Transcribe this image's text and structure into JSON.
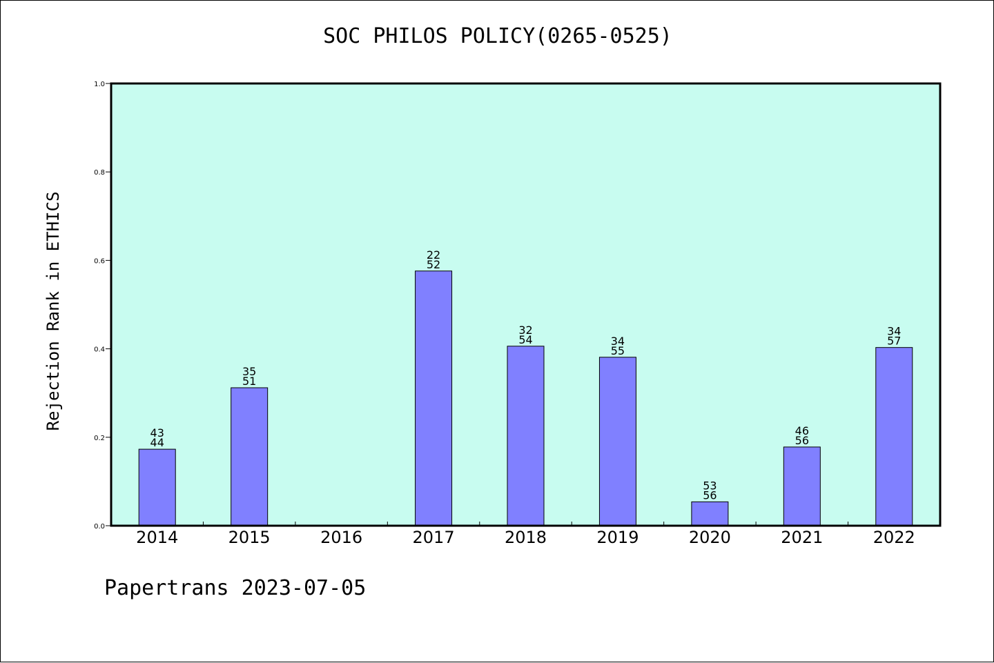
{
  "page": {
    "title": "SOC PHILOS POLICY(0265-0525)",
    "footer": "Papertrans 2023-07-05"
  },
  "chart_data": {
    "type": "bar",
    "title": "SOC PHILOS POLICY(0265-0525)",
    "xlabel": "",
    "ylabel": "Rejection Rank in ETHICS",
    "ylim": [
      0,
      1.0
    ],
    "yticks": [
      0.0,
      0.2,
      0.4,
      0.6,
      0.8,
      1.0
    ],
    "ytick_labels": [
      "0.0",
      "0.2",
      "0.4",
      "0.6",
      "0.8",
      "1.0"
    ],
    "categories": [
      "2014",
      "2015",
      "2016",
      "2017",
      "2018",
      "2019",
      "2020",
      "2021",
      "2022"
    ],
    "values": [
      0.173,
      0.312,
      null,
      0.576,
      0.406,
      0.381,
      0.054,
      0.178,
      0.403
    ],
    "annotations": [
      [
        "43",
        "44"
      ],
      [
        "35",
        "51"
      ],
      null,
      [
        "22",
        "52"
      ],
      [
        "32",
        "54"
      ],
      [
        "34",
        "55"
      ],
      [
        "53",
        "56"
      ],
      [
        "46",
        "56"
      ],
      [
        "34",
        "57"
      ]
    ],
    "grid": false,
    "colors": {
      "plot_background": "#c8fcf0",
      "bar_fill": "#8080ff",
      "bar_edge": "#000000"
    }
  }
}
